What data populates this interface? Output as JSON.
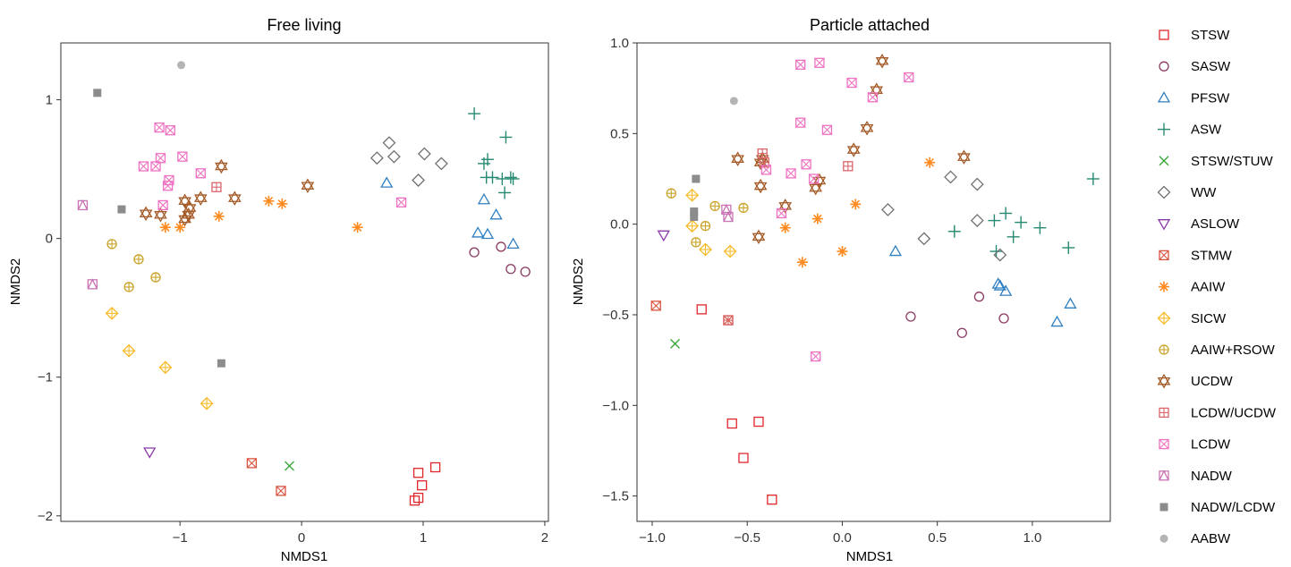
{
  "legend": {
    "entries": [
      {
        "name": "STSW",
        "color": "#e0262b",
        "shape": "square-open"
      },
      {
        "name": "SASW",
        "color": "#8b3a62",
        "shape": "circle-open"
      },
      {
        "name": "PFSW",
        "color": "#2f7fc1",
        "shape": "triangle-open"
      },
      {
        "name": "ASW",
        "color": "#268a73",
        "shape": "plus"
      },
      {
        "name": "STSW/STUW",
        "color": "#3aa63a",
        "shape": "cross"
      },
      {
        "name": "WW",
        "color": "#707070",
        "shape": "diamond-open"
      },
      {
        "name": "ASLOW",
        "color": "#8a3aa8",
        "shape": "triangle-down-open"
      },
      {
        "name": "STMW",
        "color": "#d9533e",
        "shape": "square-x"
      },
      {
        "name": "AAIW",
        "color": "#ff8a1f",
        "shape": "asterisk"
      },
      {
        "name": "SICW",
        "color": "#f7bb2a",
        "shape": "diamond-plus"
      },
      {
        "name": "AAIW+RSOW",
        "color": "#c9a227",
        "shape": "circle-plus"
      },
      {
        "name": "UCDW",
        "color": "#a35a26",
        "shape": "star-of-david"
      },
      {
        "name": "LCDW/UCDW",
        "color": "#d9656a",
        "shape": "square-plus"
      },
      {
        "name": "LCDW",
        "color": "#ef72c2",
        "shape": "square-x"
      },
      {
        "name": "NADW",
        "color": "#c973b4",
        "shape": "square-triangle"
      },
      {
        "name": "NADW/LCDW",
        "color": "#8c8c8c",
        "shape": "square-filled"
      },
      {
        "name": "AABW",
        "color": "#b4b4b4",
        "shape": "circle-filled"
      }
    ]
  },
  "chart_data": [
    {
      "type": "scatter",
      "title": "Free living",
      "xlabel": "NMDS1",
      "ylabel": "NMDS2",
      "xlim": [
        -1.98,
        2.03
      ],
      "ylim": [
        -2.04,
        1.41
      ],
      "xticks": [
        -1,
        0,
        1,
        2
      ],
      "xtick_labels": [
        "−1",
        "0",
        "1",
        "2"
      ],
      "yticks": [
        -2,
        -1,
        0,
        1
      ],
      "ytick_labels": [
        "−2",
        "−1",
        "0",
        "1"
      ],
      "grid": false,
      "series": [
        {
          "name": "STSW",
          "points": [
            [
              0.93,
              -1.89
            ],
            [
              0.96,
              -1.87
            ],
            [
              0.96,
              -1.69
            ],
            [
              0.99,
              -1.78
            ],
            [
              1.1,
              -1.65
            ]
          ]
        },
        {
          "name": "SASW",
          "points": [
            [
              1.42,
              -0.1
            ],
            [
              1.64,
              -0.06
            ],
            [
              1.72,
              -0.22
            ],
            [
              1.84,
              -0.24
            ]
          ]
        },
        {
          "name": "PFSW",
          "points": [
            [
              0.7,
              0.4
            ],
            [
              1.45,
              0.04
            ],
            [
              1.5,
              0.28
            ],
            [
              1.53,
              0.03
            ],
            [
              1.6,
              0.17
            ],
            [
              1.74,
              -0.04
            ]
          ]
        },
        {
          "name": "ASW",
          "points": [
            [
              1.42,
              0.9
            ],
            [
              1.5,
              0.54
            ],
            [
              1.53,
              0.57
            ],
            [
              1.52,
              0.44
            ],
            [
              1.57,
              0.44
            ],
            [
              1.65,
              0.43
            ],
            [
              1.68,
              0.73
            ],
            [
              1.72,
              0.44
            ],
            [
              1.74,
              0.43
            ],
            [
              1.67,
              0.33
            ]
          ]
        },
        {
          "name": "STSW/STUW",
          "points": [
            [
              -0.1,
              -1.64
            ]
          ]
        },
        {
          "name": "WW",
          "points": [
            [
              0.62,
              0.58
            ],
            [
              0.72,
              0.69
            ],
            [
              0.76,
              0.59
            ],
            [
              0.96,
              0.42
            ],
            [
              1.01,
              0.61
            ],
            [
              1.15,
              0.54
            ]
          ]
        },
        {
          "name": "ASLOW",
          "points": [
            [
              -1.25,
              -1.54
            ]
          ]
        },
        {
          "name": "STMW",
          "points": [
            [
              -0.41,
              -1.62
            ],
            [
              -0.17,
              -1.82
            ]
          ]
        },
        {
          "name": "AAIW",
          "points": [
            [
              -1.12,
              0.08
            ],
            [
              -1.0,
              0.08
            ],
            [
              -0.68,
              0.16
            ],
            [
              -0.27,
              0.27
            ],
            [
              -0.16,
              0.25
            ],
            [
              0.46,
              0.08
            ]
          ]
        },
        {
          "name": "SICW",
          "points": [
            [
              -1.56,
              -0.54
            ],
            [
              -1.42,
              -0.81
            ],
            [
              -1.12,
              -0.93
            ],
            [
              -0.78,
              -1.19
            ]
          ]
        },
        {
          "name": "AAIW+RSOW",
          "points": [
            [
              -1.56,
              -0.04
            ],
            [
              -1.34,
              -0.15
            ],
            [
              -1.42,
              -0.35
            ],
            [
              -1.2,
              -0.28
            ]
          ]
        },
        {
          "name": "UCDW",
          "points": [
            [
              -1.28,
              0.18
            ],
            [
              -1.16,
              0.17
            ],
            [
              -0.96,
              0.27
            ],
            [
              -0.96,
              0.14
            ],
            [
              -0.93,
              0.17
            ],
            [
              -0.92,
              0.22
            ],
            [
              -0.83,
              0.29
            ],
            [
              -0.66,
              0.52
            ],
            [
              -0.55,
              0.29
            ],
            [
              0.05,
              0.38
            ]
          ]
        },
        {
          "name": "LCDW/UCDW",
          "points": [
            [
              -0.7,
              0.37
            ]
          ]
        },
        {
          "name": "LCDW",
          "points": [
            [
              -1.3,
              0.52
            ],
            [
              -1.2,
              0.52
            ],
            [
              -1.17,
              0.8
            ],
            [
              -1.16,
              0.58
            ],
            [
              -1.14,
              0.24
            ],
            [
              -1.08,
              0.78
            ],
            [
              -1.1,
              0.38
            ],
            [
              -1.09,
              0.42
            ],
            [
              -0.98,
              0.59
            ],
            [
              -0.83,
              0.47
            ],
            [
              0.82,
              0.26
            ]
          ]
        },
        {
          "name": "NADW",
          "points": [
            [
              -1.8,
              0.24
            ],
            [
              -1.72,
              -0.33
            ]
          ]
        },
        {
          "name": "NADW/LCDW",
          "points": [
            [
              -1.68,
              1.05
            ],
            [
              -1.48,
              0.21
            ],
            [
              -0.66,
              -0.9
            ]
          ]
        },
        {
          "name": "AABW",
          "points": [
            [
              -0.99,
              1.25
            ]
          ]
        }
      ]
    },
    {
      "type": "scatter",
      "title": "Particle attached",
      "xlabel": "NMDS1",
      "ylabel": "NMDS2",
      "xlim": [
        -1.08,
        1.41
      ],
      "ylim": [
        -1.64,
        1.0
      ],
      "xticks": [
        -1.0,
        -0.5,
        0.0,
        0.5,
        1.0
      ],
      "xtick_labels": [
        "−1.0",
        "−0.5",
        "0.0",
        "0.5",
        "1.0"
      ],
      "yticks": [
        -1.5,
        -1.0,
        -0.5,
        0.0,
        0.5,
        1.0
      ],
      "ytick_labels": [
        "−1.5",
        "−1.0",
        "−0.5",
        "0.0",
        "0.5",
        "1.0"
      ],
      "grid": false,
      "series": [
        {
          "name": "STSW",
          "points": [
            [
              -0.74,
              -0.47
            ],
            [
              -0.58,
              -1.1
            ],
            [
              -0.52,
              -1.29
            ],
            [
              -0.44,
              -1.09
            ],
            [
              -0.37,
              -1.52
            ]
          ]
        },
        {
          "name": "SASW",
          "points": [
            [
              0.36,
              -0.51
            ],
            [
              0.63,
              -0.6
            ],
            [
              0.72,
              -0.4
            ],
            [
              0.85,
              -0.52
            ]
          ]
        },
        {
          "name": "PFSW",
          "points": [
            [
              0.28,
              -0.15
            ],
            [
              0.82,
              -0.33
            ],
            [
              0.83,
              -0.34
            ],
            [
              0.86,
              -0.37
            ],
            [
              1.13,
              -0.54
            ],
            [
              1.2,
              -0.44
            ]
          ]
        },
        {
          "name": "ASW",
          "points": [
            [
              0.59,
              -0.04
            ],
            [
              0.8,
              0.02
            ],
            [
              0.81,
              -0.15
            ],
            [
              0.86,
              0.06
            ],
            [
              0.9,
              -0.07
            ],
            [
              0.94,
              0.01
            ],
            [
              1.04,
              -0.02
            ],
            [
              1.19,
              -0.13
            ],
            [
              1.32,
              0.25
            ]
          ]
        },
        {
          "name": "STSW/STUW",
          "points": [
            [
              -0.88,
              -0.66
            ]
          ]
        },
        {
          "name": "WW",
          "points": [
            [
              0.24,
              0.08
            ],
            [
              0.43,
              -0.08
            ],
            [
              0.57,
              0.26
            ],
            [
              0.71,
              0.22
            ],
            [
              0.71,
              0.02
            ],
            [
              0.83,
              -0.17
            ]
          ]
        },
        {
          "name": "ASLOW",
          "points": [
            [
              -0.94,
              -0.06
            ]
          ]
        },
        {
          "name": "STMW",
          "points": [
            [
              -0.98,
              -0.45
            ],
            [
              -0.6,
              -0.53
            ]
          ]
        },
        {
          "name": "AAIW",
          "points": [
            [
              -0.3,
              -0.02
            ],
            [
              -0.21,
              -0.21
            ],
            [
              -0.13,
              0.03
            ],
            [
              -0.0,
              -0.15
            ],
            [
              0.07,
              0.11
            ],
            [
              0.46,
              0.34
            ]
          ]
        },
        {
          "name": "SICW",
          "points": [
            [
              -0.79,
              0.16
            ],
            [
              -0.79,
              -0.01
            ],
            [
              -0.72,
              -0.14
            ],
            [
              -0.59,
              -0.15
            ]
          ]
        },
        {
          "name": "AAIW+RSOW",
          "points": [
            [
              -0.9,
              0.17
            ],
            [
              -0.77,
              -0.1
            ],
            [
              -0.72,
              -0.01
            ],
            [
              -0.67,
              0.1
            ],
            [
              -0.52,
              0.09
            ]
          ]
        },
        {
          "name": "UCDW",
          "points": [
            [
              -0.55,
              0.36
            ],
            [
              -0.43,
              0.21
            ],
            [
              -0.43,
              0.34
            ],
            [
              -0.42,
              0.36
            ],
            [
              -0.3,
              0.1
            ],
            [
              -0.14,
              0.2
            ],
            [
              -0.12,
              0.24
            ],
            [
              0.06,
              0.41
            ],
            [
              0.13,
              0.53
            ],
            [
              0.18,
              0.74
            ],
            [
              0.21,
              0.9
            ],
            [
              0.64,
              0.37
            ],
            [
              -0.44,
              -0.07
            ]
          ]
        },
        {
          "name": "LCDW/UCDW",
          "points": [
            [
              -0.42,
              0.39
            ],
            [
              -0.41,
              0.34
            ],
            [
              0.03,
              0.32
            ],
            [
              -0.6,
              -0.53
            ]
          ]
        },
        {
          "name": "LCDW",
          "points": [
            [
              -0.22,
              0.88
            ],
            [
              -0.12,
              0.89
            ],
            [
              -0.4,
              0.3
            ],
            [
              -0.32,
              0.06
            ],
            [
              -0.22,
              0.56
            ],
            [
              -0.19,
              0.33
            ],
            [
              -0.15,
              0.25
            ],
            [
              -0.08,
              0.52
            ],
            [
              0.05,
              0.78
            ],
            [
              0.16,
              0.7
            ],
            [
              0.35,
              0.81
            ],
            [
              -0.27,
              0.28
            ],
            [
              -0.14,
              -0.73
            ]
          ]
        },
        {
          "name": "NADW",
          "points": [
            [
              -0.61,
              0.08
            ],
            [
              -0.6,
              0.04
            ]
          ]
        },
        {
          "name": "NADW/LCDW",
          "points": [
            [
              -0.77,
              0.25
            ],
            [
              -0.78,
              0.07
            ],
            [
              -0.78,
              0.04
            ]
          ]
        },
        {
          "name": "AABW",
          "points": [
            [
              -0.57,
              0.68
            ]
          ]
        }
      ]
    }
  ]
}
